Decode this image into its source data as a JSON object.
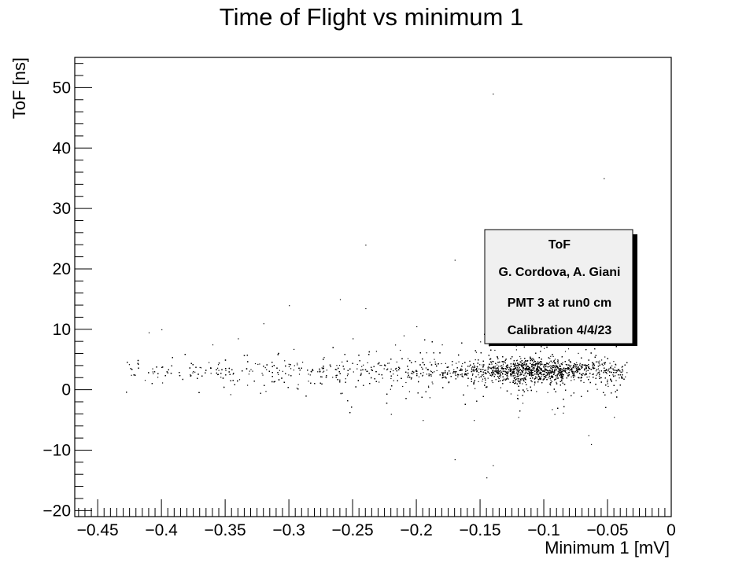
{
  "chart_data": {
    "type": "scatter",
    "title": "Time of Flight vs minimum 1",
    "xlabel": "Minimum 1 [mV]",
    "ylabel": "ToF [ns]",
    "xlim": [
      -0.468,
      0.0
    ],
    "ylim": [
      -21.0,
      55.0
    ],
    "xticks": [
      -0.45,
      -0.4,
      -0.35,
      -0.3,
      -0.25,
      -0.2,
      -0.15,
      -0.1,
      -0.05,
      0
    ],
    "xtick_labels": [
      "−0.45",
      "−0.4",
      "−0.35",
      "−0.3",
      "−0.25",
      "−0.2",
      "−0.15",
      "−0.1",
      "−0.05",
      "0"
    ],
    "yticks": [
      -20,
      -10,
      0,
      10,
      20,
      30,
      40,
      50
    ],
    "ytick_labels": [
      "−20",
      "−10",
      "0",
      "10",
      "20",
      "30",
      "40",
      "50"
    ],
    "grid": false,
    "legend": {
      "placement": "right",
      "lines": [
        "ToF",
        "G. Cordova, A. Giani",
        "PMT 3 at run0 cm",
        "Calibration 4/4/23"
      ]
    },
    "main_band": {
      "x_range": [
        -0.43,
        -0.035
      ],
      "y_center": 3.2,
      "densest_x": -0.11
    },
    "outliers": [
      {
        "x": -0.14,
        "y": 49.0
      },
      {
        "x": -0.053,
        "y": 35.0
      },
      {
        "x": -0.24,
        "y": 24.0
      },
      {
        "x": -0.17,
        "y": 21.5
      },
      {
        "x": -0.26,
        "y": 15.0
      },
      {
        "x": -0.24,
        "y": 13.5
      },
      {
        "x": -0.3,
        "y": 14.0
      },
      {
        "x": -0.32,
        "y": 11.0
      },
      {
        "x": -0.4,
        "y": 10.0
      },
      {
        "x": -0.14,
        "y": -12.5
      },
      {
        "x": -0.17,
        "y": -11.5
      },
      {
        "x": -0.145,
        "y": -14.5
      },
      {
        "x": -0.065,
        "y": -7.5
      },
      {
        "x": -0.063,
        "y": -9.0
      },
      {
        "x": -0.155,
        "y": -5.0
      },
      {
        "x": -0.12,
        "y": -4.5
      },
      {
        "x": -0.22,
        "y": -4.0
      },
      {
        "x": -0.195,
        "y": -5.0
      },
      {
        "x": -0.045,
        "y": -4.5
      },
      {
        "x": -0.085,
        "y": -3.8
      },
      {
        "x": -0.21,
        "y": 9.0
      },
      {
        "x": -0.18,
        "y": 7.5
      },
      {
        "x": -0.25,
        "y": 8.5
      },
      {
        "x": -0.36,
        "y": 7.5
      },
      {
        "x": -0.41,
        "y": 9.5
      },
      {
        "x": -0.15,
        "y": 8.0
      },
      {
        "x": -0.12,
        "y": 10.0
      },
      {
        "x": -0.2,
        "y": 10.5
      },
      {
        "x": -0.34,
        "y": 8.5
      },
      {
        "x": -0.09,
        "y": 8.5
      }
    ]
  }
}
